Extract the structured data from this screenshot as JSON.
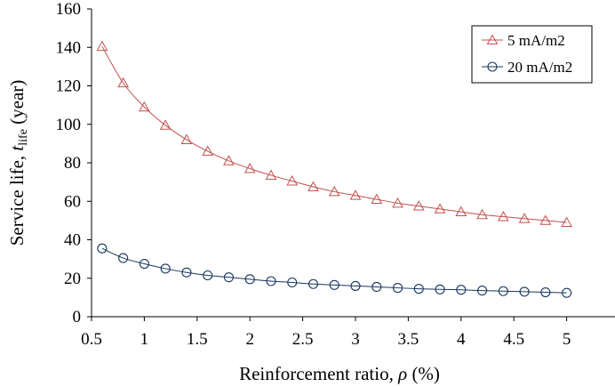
{
  "chart_data": {
    "type": "line",
    "xlabel": "Reinforcement ratio, ρ (%)",
    "xlabel_parts": {
      "main": "Reinforcement ratio, ",
      "symbol": "ρ",
      "suffix": " (%)"
    },
    "ylabel": "Service life, tlife (year)",
    "ylabel_parts": {
      "main": "Service life, ",
      "symbol": "t",
      "subscript": "life",
      "suffix": " (year)"
    },
    "xlim": [
      0.5,
      5.5
    ],
    "ylim": [
      0,
      160
    ],
    "x_ticks": [
      "0.5",
      "1",
      "1.5",
      "2",
      "2.5",
      "3",
      "3.5",
      "4",
      "4.5",
      "5"
    ],
    "y_ticks": [
      "0",
      "20",
      "40",
      "60",
      "80",
      "100",
      "120",
      "140",
      "160"
    ],
    "grid": false,
    "legend_position": "top-right",
    "x": [
      0.6,
      0.8,
      1.0,
      1.2,
      1.4,
      1.6,
      1.8,
      2.0,
      2.2,
      2.4,
      2.6,
      2.8,
      3.0,
      3.2,
      3.4,
      3.6,
      3.8,
      4.0,
      4.2,
      4.4,
      4.6,
      4.8,
      5.0
    ],
    "series": [
      {
        "name": "5 mA/m2",
        "marker": "triangle",
        "color": "#c0504d",
        "values": [
          140.5,
          121.5,
          109,
          99.5,
          92,
          86,
          81,
          77,
          73.5,
          70.5,
          67.5,
          65,
          63,
          61,
          59,
          57.5,
          56,
          54.5,
          53,
          52,
          51,
          50,
          49
        ]
      },
      {
        "name": "20 mA/m2",
        "marker": "circle",
        "color": "#17375e",
        "values": [
          35.5,
          30.5,
          27.5,
          25,
          23,
          21.5,
          20.5,
          19.5,
          18.5,
          17.8,
          17,
          16.5,
          16,
          15.5,
          15,
          14.5,
          14.2,
          14,
          13.6,
          13.3,
          13,
          12.7,
          12.4
        ]
      }
    ]
  }
}
